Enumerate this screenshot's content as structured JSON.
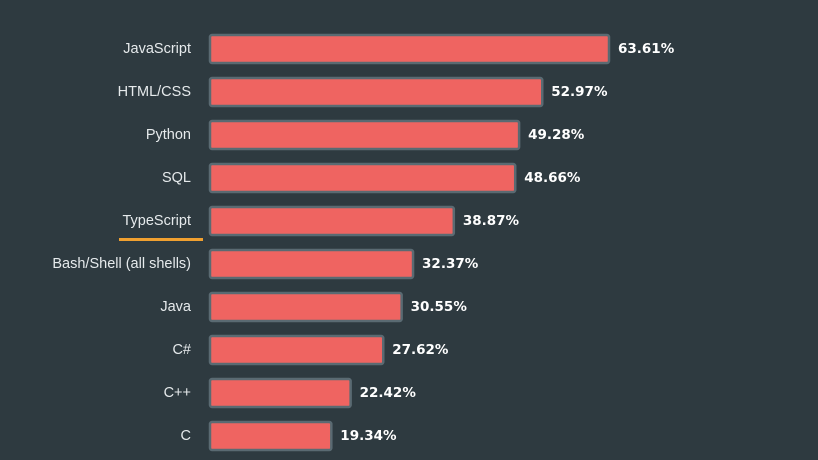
{
  "chart_data": {
    "type": "bar",
    "orientation": "horizontal",
    "categories": [
      "JavaScript",
      "HTML/CSS",
      "Python",
      "SQL",
      "TypeScript",
      "Bash/Shell (all shells)",
      "Java",
      "C#",
      "C++",
      "C"
    ],
    "values": [
      63.61,
      52.97,
      49.28,
      48.66,
      38.87,
      32.37,
      30.55,
      27.62,
      22.42,
      19.34
    ],
    "value_labels": [
      "63.61%",
      "52.97%",
      "49.28%",
      "48.66%",
      "38.87%",
      "32.37%",
      "30.55%",
      "27.62%",
      "22.42%",
      "19.34%"
    ],
    "highlighted_category": "TypeScript",
    "title": "",
    "xlabel": "",
    "ylabel": "",
    "xlim": [
      0,
      63.61
    ],
    "grid": false,
    "legend": "none"
  },
  "colors": {
    "background": "#2e3a40",
    "bar_fill": "#ef6461",
    "bar_stroke": "#5a6a72",
    "highlight_underline": "#f0a030",
    "label_text": "#e6eaec",
    "value_text": "#ffffff"
  }
}
